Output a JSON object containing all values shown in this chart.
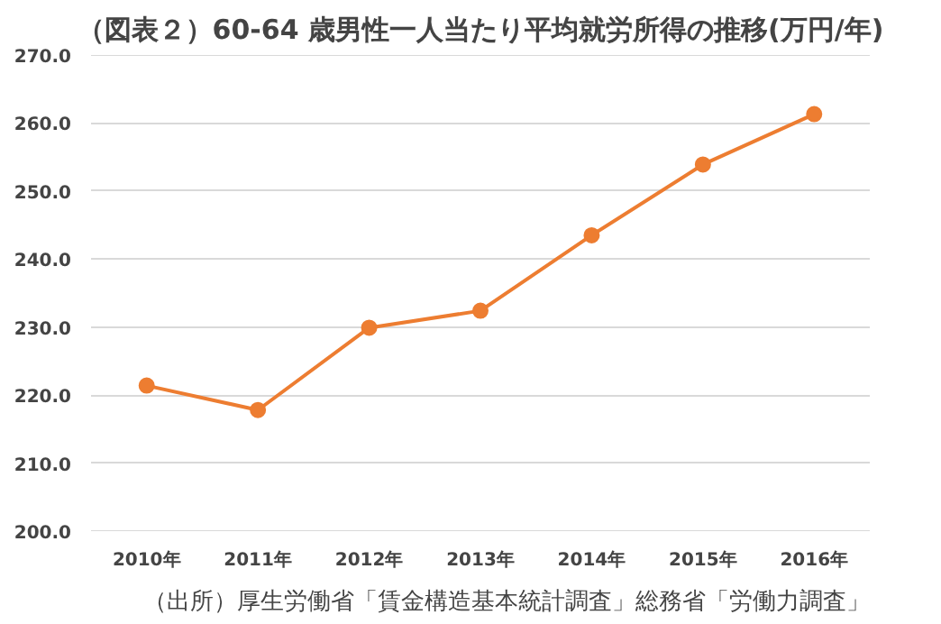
{
  "chart_data": {
    "type": "line",
    "title": "（図表２）60-64 歳男性一人当たり平均就労所得の推移(万円/年)",
    "categories": [
      "2010年",
      "2011年",
      "2012年",
      "2013年",
      "2014年",
      "2015年",
      "2016年"
    ],
    "series": [
      {
        "color": "#ed7d31",
        "values": [
          221.4,
          217.8,
          229.9,
          232.4,
          243.5,
          253.9,
          261.3
        ]
      }
    ],
    "ylim": [
      200,
      270
    ],
    "yticks": [
      {
        "value": 200,
        "label": "200.0"
      },
      {
        "value": 210,
        "label": "210.0"
      },
      {
        "value": 220,
        "label": "220.0"
      },
      {
        "value": 230,
        "label": "230.0"
      },
      {
        "value": 240,
        "label": "240.0"
      },
      {
        "value": 250,
        "label": "250.0"
      },
      {
        "value": 260,
        "label": "260.0"
      },
      {
        "value": 270,
        "label": "270.0"
      }
    ],
    "grid": "y",
    "marker": "circle",
    "line_style": "solid",
    "annotations": [
      "（出所）厚生労働省「賃金構造基本統計調査」総務省「労働力調査」"
    ]
  }
}
